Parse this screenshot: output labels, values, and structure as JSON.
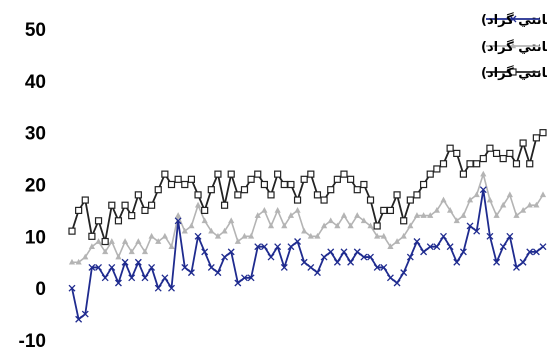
{
  "chart_data": {
    "type": "line",
    "title": "",
    "xlabel": "",
    "ylabel": "",
    "ylim": [
      -10,
      50
    ],
    "yticks": [
      -10,
      0,
      10,
      20,
      30,
      40,
      50
    ],
    "grid": false,
    "legend_position": "top-right",
    "series": [
      {
        "name": "دماي حداقل (سانتي گراد)",
        "color": "#1F2B8F",
        "marker": "x",
        "values": [
          0,
          -6,
          -5,
          4,
          4,
          2,
          4,
          1,
          5,
          2,
          5,
          2,
          4,
          0,
          2,
          0,
          13,
          4,
          3,
          10,
          7,
          4,
          3,
          6,
          7,
          1,
          2,
          2,
          8,
          8,
          6,
          8,
          4,
          8,
          9,
          5,
          4,
          3,
          6,
          7,
          5,
          7,
          5,
          7,
          6,
          6,
          4,
          4,
          2,
          1,
          3,
          6,
          9,
          7,
          8,
          8,
          10,
          8,
          5,
          7,
          12,
          11,
          19,
          10,
          5,
          8,
          10,
          4,
          5,
          7,
          7,
          8
        ]
      },
      {
        "name": "دماي متوسط (سانتي گراد)",
        "color": "#B4B4B4",
        "marker": "triangle",
        "values": [
          5,
          5,
          6,
          8,
          9,
          7,
          9,
          6,
          9,
          7,
          9,
          7,
          10,
          9,
          10,
          8,
          14,
          11,
          12,
          16,
          13,
          11,
          10,
          11,
          13,
          9,
          10,
          10,
          14,
          15,
          12,
          15,
          12,
          14,
          15,
          11,
          10,
          10,
          12,
          13,
          12,
          14,
          12,
          14,
          13,
          12,
          10,
          10,
          8,
          9,
          10,
          12,
          14,
          14,
          14,
          15,
          17,
          15,
          13,
          14,
          17,
          18,
          22,
          17,
          14,
          16,
          18,
          14,
          15,
          16,
          16,
          18
        ]
      },
      {
        "name": "دماي حداكثر (سانتي گراد)",
        "color": "#222222",
        "marker": "square",
        "values": [
          11,
          15,
          17,
          10,
          13,
          9,
          16,
          13,
          16,
          14,
          18,
          15,
          16,
          19,
          22,
          20,
          21,
          20,
          21,
          18,
          15,
          19,
          22,
          16,
          22,
          18,
          19,
          21,
          22,
          20,
          18,
          22,
          20,
          20,
          17,
          21,
          22,
          18,
          17,
          19,
          21,
          22,
          21,
          19,
          20,
          17,
          12,
          15,
          15,
          18,
          13,
          17,
          18,
          20,
          22,
          23,
          24,
          27,
          26,
          22,
          24,
          24,
          25,
          27,
          26,
          25,
          26,
          24,
          28,
          24,
          29,
          30
        ]
      }
    ]
  }
}
